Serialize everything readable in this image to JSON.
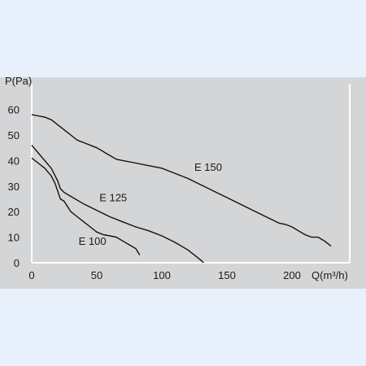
{
  "colors": {
    "page_background": "#e8f1fb",
    "plot_background": "#d4d5d7",
    "curve": "#111111",
    "axis": "#ffffff",
    "text": "#1a1a1a"
  },
  "chart_data": {
    "type": "line",
    "title": "",
    "xlabel": "Q(m³/h)",
    "ylabel": "P(Pa)",
    "xlim": [
      0,
      240
    ],
    "ylim": [
      0,
      70
    ],
    "xticks": [
      "0",
      "50",
      "100",
      "150",
      "200"
    ],
    "yticks": [
      "0",
      "10",
      "20",
      "30",
      "40",
      "50",
      "60"
    ],
    "grid": false,
    "series": [
      {
        "name": "E 100",
        "x": [
          0,
          5,
          10,
          15,
          18,
          20,
          22,
          25,
          30,
          35,
          40,
          45,
          50,
          55,
          60,
          65,
          70,
          75,
          80,
          83
        ],
        "y": [
          41,
          39,
          37,
          34,
          31,
          28,
          25,
          24,
          20,
          18,
          16,
          14,
          12,
          11,
          10.5,
          10,
          8.5,
          7,
          5.5,
          3
        ]
      },
      {
        "name": "E 125",
        "x": [
          0,
          5,
          10,
          15,
          20,
          22,
          25,
          30,
          40,
          50,
          60,
          70,
          80,
          90,
          100,
          110,
          120,
          125,
          130,
          132
        ],
        "y": [
          46,
          43,
          40,
          37,
          32,
          29,
          27.5,
          26,
          23,
          20.5,
          18,
          16,
          14,
          12.5,
          10.5,
          8,
          5,
          3,
          1,
          0
        ]
      },
      {
        "name": "E 150",
        "x": [
          0,
          5,
          10,
          15,
          20,
          25,
          30,
          35,
          40,
          50,
          60,
          65,
          70,
          80,
          90,
          100,
          110,
          120,
          130,
          140,
          150,
          160,
          170,
          180,
          190,
          195,
          200,
          205,
          210,
          215,
          220,
          225,
          230
        ],
        "y": [
          58,
          57.5,
          57,
          56,
          54,
          52,
          50,
          48,
          47,
          45,
          42,
          40.5,
          40,
          39,
          38,
          37,
          35,
          33,
          30.5,
          28,
          25.5,
          23,
          20.5,
          18,
          15.5,
          15,
          14,
          12.5,
          11,
          10,
          10,
          8.5,
          6.5
        ]
      }
    ],
    "annotations": [
      {
        "text": "E 100",
        "x": 36,
        "y": 7
      },
      {
        "text": "E 125",
        "x": 52,
        "y": 24
      },
      {
        "text": "E 150",
        "x": 125,
        "y": 36
      }
    ]
  }
}
